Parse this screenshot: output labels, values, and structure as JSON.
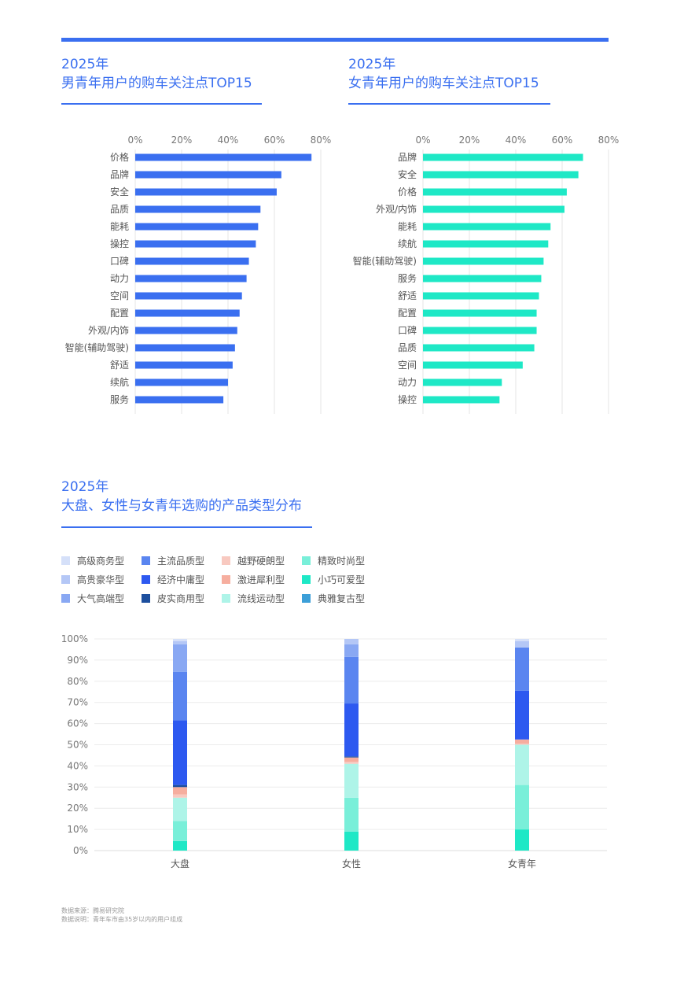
{
  "colors": {
    "accent": "#3a6ff0",
    "male_bar": "#3a6ff0",
    "female_bar": "#1ee8c6"
  },
  "section1": {
    "male": {
      "title_line1": "2025年",
      "title_line2": "男青年用户的购车关注点TOP15"
    },
    "female": {
      "title_line1": "2025年",
      "title_line2": "女青年用户的购车关注点TOP15"
    }
  },
  "section2": {
    "title_line1": "2025年",
    "title_line2": "大盘、女性与女青年选购的产品类型分布"
  },
  "footnote": {
    "line1": "数据来源：腾易研究院",
    "line2": "数据说明：青年车市由35岁以内的用户组成"
  },
  "chart_data": [
    {
      "type": "bar",
      "orientation": "horizontal",
      "title": "男青年用户的购车关注点TOP15",
      "categories": [
        "价格",
        "品牌",
        "安全",
        "品质",
        "能耗",
        "操控",
        "口碑",
        "动力",
        "空间",
        "配置",
        "外观/内饰",
        "智能(辅助驾驶)",
        "舒适",
        "续航",
        "服务"
      ],
      "values": [
        76,
        63,
        61,
        54,
        53,
        52,
        49,
        48,
        46,
        45,
        44,
        43,
        42,
        40,
        38
      ],
      "xlim": [
        0,
        80
      ],
      "xticks": [
        "0%",
        "20%",
        "40%",
        "60%",
        "80%"
      ],
      "xtick_values": [
        0,
        20,
        40,
        60,
        80
      ],
      "grid": true,
      "color": "#3a6ff0"
    },
    {
      "type": "bar",
      "orientation": "horizontal",
      "title": "女青年用户的购车关注点TOP15",
      "categories": [
        "品牌",
        "安全",
        "价格",
        "外观/内饰",
        "能耗",
        "续航",
        "智能(辅助驾驶)",
        "服务",
        "舒适",
        "配置",
        "口碑",
        "品质",
        "空间",
        "动力",
        "操控"
      ],
      "values": [
        69,
        67,
        62,
        61,
        55,
        54,
        52,
        51,
        50,
        49,
        49,
        48,
        43,
        34,
        33
      ],
      "xlim": [
        0,
        80
      ],
      "xticks": [
        "0%",
        "20%",
        "40%",
        "60%",
        "80%"
      ],
      "xtick_values": [
        0,
        20,
        40,
        60,
        80
      ],
      "grid": true,
      "color": "#1ee8c6"
    },
    {
      "type": "bar",
      "stacked": true,
      "title": "大盘、女性与女青年选购的产品类型分布",
      "categories": [
        "大盘",
        "女性",
        "女青年"
      ],
      "ylim": [
        0,
        100
      ],
      "yticks": [
        "0%",
        "10%",
        "20%",
        "30%",
        "40%",
        "50%",
        "60%",
        "70%",
        "80%",
        "90%",
        "100%"
      ],
      "ytick_values": [
        0,
        10,
        20,
        30,
        40,
        50,
        60,
        70,
        80,
        90,
        100
      ],
      "grid": true,
      "legend_position": "top-left",
      "legend_columns": 4,
      "series": [
        {
          "name": "小巧可爱型",
          "color": "#1ee8c6",
          "values": [
            4.5,
            9,
            10
          ]
        },
        {
          "name": "精致时尚型",
          "color": "#79efd9",
          "values": [
            9.5,
            16,
            21
          ]
        },
        {
          "name": "流线运动型",
          "color": "#aef4e8",
          "values": [
            11,
            16,
            19
          ]
        },
        {
          "name": "典雅复古型",
          "color": "#3c9fd8",
          "values": [
            0,
            0,
            0
          ]
        },
        {
          "name": "越野硬朗型",
          "color": "#f8c9c0",
          "values": [
            1.5,
            1,
            0.5
          ]
        },
        {
          "name": "激进犀利型",
          "color": "#f6ae9f",
          "values": [
            3.5,
            2,
            2
          ]
        },
        {
          "name": "皮实商用型",
          "color": "#1d4f9e",
          "values": [
            1,
            0.5,
            0
          ]
        },
        {
          "name": "经济中庸型",
          "color": "#2d59f0",
          "values": [
            30.5,
            25,
            23
          ]
        },
        {
          "name": "主流品质型",
          "color": "#5a85f0",
          "values": [
            23,
            22,
            20.5
          ]
        },
        {
          "name": "大气高端型",
          "color": "#89a8f3",
          "values": [
            13,
            6,
            0
          ]
        },
        {
          "name": "高贵豪华型",
          "color": "#b4c7f6",
          "values": [
            1.5,
            2.5,
            3
          ]
        },
        {
          "name": "高级商务型",
          "color": "#d5e0f9",
          "values": [
            1,
            0,
            1
          ]
        }
      ],
      "legend_order": [
        "高级商务型",
        "主流品质型",
        "越野硬朗型",
        "精致时尚型",
        "高贵豪华型",
        "经济中庸型",
        "激进犀利型",
        "小巧可爱型",
        "大气高端型",
        "皮实商用型",
        "流线运动型",
        "典雅复古型"
      ]
    }
  ]
}
